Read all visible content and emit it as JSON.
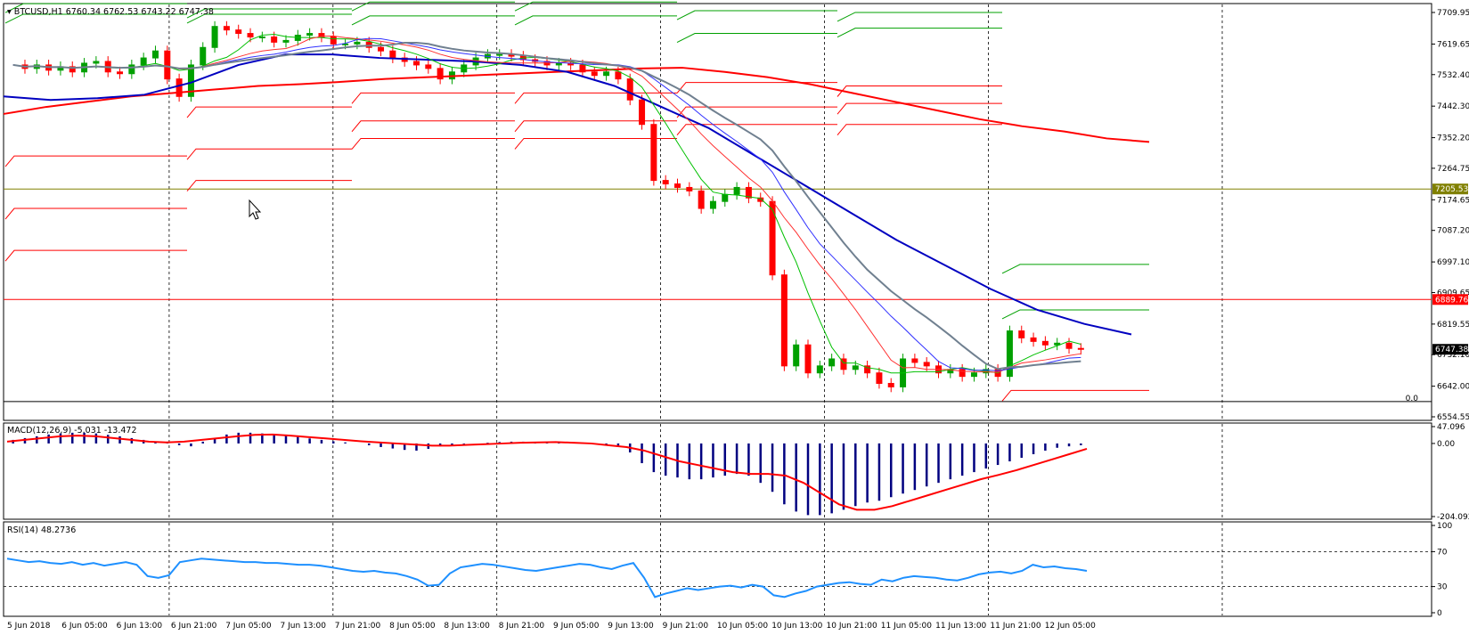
{
  "header": {
    "symbol_label": "BTCUSD,H1",
    "ohlc": "6760.34 6762.53 6743.22 6747.38"
  },
  "macd_header": "MACD(12,26,9) -5.031 -13.472",
  "rsi_header": "RSI(14) 48.2736",
  "price_levels": {
    "red_line_label": "6889.76",
    "olive_line_label": "7205.53",
    "current_label": "6747.38",
    "zero_label": "0.0",
    "red_line_value": 6889.76,
    "olive_line_value": 7205.53,
    "current_value": 6747.38,
    "black_line_value": 6598
  },
  "colors": {
    "bull": "#00a000",
    "bear": "#ff0000",
    "ma_blue": "#0000c0",
    "ma_red": "#ff0000",
    "macd_hist": "#000080",
    "rsi": "#1e90ff",
    "olive": "#808000"
  },
  "chart_data": [
    {
      "type": "candlestick",
      "title": "BTCUSD,H1",
      "ylim": [
        6554.55,
        7709.95
      ],
      "y_ticks": [
        "7709.95",
        "7619.65",
        "7532.40",
        "7442.30",
        "7352.20",
        "7264.75",
        "7174.65",
        "7087.20",
        "6997.10",
        "6909.65",
        "6819.55",
        "6732.10",
        "6642.00",
        "6554.55"
      ],
      "x_ticks": [
        "5 Jun 2018",
        "6 Jun 05:00",
        "6 Jun 13:00",
        "6 Jun 21:00",
        "7 Jun 05:00",
        "7 Jun 13:00",
        "7 Jun 21:00",
        "8 Jun 05:00",
        "8 Jun 13:00",
        "8 Jun 21:00",
        "9 Jun 05:00",
        "9 Jun 13:00",
        "9 Jun 21:00",
        "10 Jun 05:00",
        "10 Jun 13:00",
        "10 Jun 21:00",
        "11 Jun 05:00",
        "11 Jun 13:00",
        "11 Jun 21:00",
        "12 Jun 05:00"
      ],
      "close_path": [
        7560,
        7550,
        7560,
        7545,
        7555,
        7540,
        7565,
        7570,
        7540,
        7535,
        7560,
        7580,
        7600,
        7520,
        7470,
        7560,
        7610,
        7670,
        7660,
        7650,
        7640,
        7640,
        7625,
        7630,
        7645,
        7650,
        7640,
        7620,
        7620,
        7625,
        7610,
        7600,
        7580,
        7570,
        7560,
        7550,
        7520,
        7540,
        7560,
        7580,
        7590,
        7590,
        7585,
        7575,
        7570,
        7560,
        7565,
        7560,
        7540,
        7530,
        7540,
        7520,
        7460,
        7390,
        7230,
        7220,
        7210,
        7200,
        7150,
        7170,
        7190,
        7210,
        7180,
        7170,
        6960,
        6700,
        6760,
        6680,
        6700,
        6720,
        6690,
        6700,
        6680,
        6650,
        6640,
        6720,
        6710,
        6700,
        6680,
        6690,
        6670,
        6680,
        6690,
        6670,
        6800,
        6780,
        6770,
        6760,
        6765,
        6750,
        6747.38
      ],
      "ma_slow": [
        7420,
        7440,
        7455,
        7470,
        7480,
        7490,
        7500,
        7505,
        7512,
        7520,
        7525,
        7530,
        7535,
        7540,
        7545,
        7550,
        7552,
        7540,
        7525,
        7505,
        7480,
        7455,
        7430,
        7405,
        7385,
        7370,
        7350,
        7340
      ],
      "ma_mid": [
        7470,
        7460,
        7465,
        7475,
        7510,
        7560,
        7590,
        7590,
        7580,
        7575,
        7570,
        7560,
        7540,
        7500,
        7440,
        7380,
        7300,
        7220,
        7140,
        7060,
        6990,
        6920,
        6860,
        6820,
        6790
      ],
      "macd": {
        "ylim": [
          -204.092,
          47.096
        ],
        "y_ticks": [
          "47.096",
          "0.00",
          "-204.092"
        ],
        "hist": [
          10,
          15,
          20,
          25,
          28,
          30,
          30,
          28,
          24,
          20,
          15,
          10,
          5,
          2,
          -5,
          -8,
          5,
          15,
          25,
          30,
          30,
          28,
          25,
          22,
          18,
          14,
          10,
          6,
          3,
          0,
          -5,
          -10,
          -14,
          -18,
          -20,
          -15,
          -8,
          -4,
          -2,
          0,
          2,
          4,
          5,
          5,
          4,
          3,
          2,
          1,
          0,
          -2,
          -5,
          -10,
          -25,
          -55,
          -80,
          -90,
          -95,
          -100,
          -100,
          -95,
          -90,
          -85,
          -90,
          -110,
          -135,
          -170,
          -190,
          -200,
          -200,
          -195,
          -185,
          -175,
          -165,
          -160,
          -150,
          -140,
          -130,
          -120,
          -110,
          -100,
          -90,
          -80,
          -70,
          -60,
          -50,
          -40,
          -30,
          -20,
          -12,
          -8,
          -5
        ],
        "signal": [
          5,
          10,
          15,
          20,
          22,
          20,
          15,
          10,
          5,
          3,
          5,
          10,
          15,
          20,
          24,
          25,
          22,
          18,
          14,
          10,
          6,
          3,
          0,
          -3,
          -6,
          -6,
          -4,
          -2,
          0,
          2,
          3,
          4,
          2,
          0,
          -5,
          -10,
          -20,
          -35,
          -50,
          -60,
          -70,
          -80,
          -85,
          -85,
          -90,
          -110,
          -140,
          -170,
          -185,
          -185,
          -175,
          -160,
          -145,
          -130,
          -115,
          -100,
          -88,
          -75,
          -60,
          -45,
          -30,
          -15
        ]
      },
      "rsi": {
        "ylim": [
          0,
          100
        ],
        "y_ticks": [
          "100",
          "70",
          "30",
          "0"
        ],
        "values": [
          62,
          60,
          58,
          59,
          57,
          56,
          58,
          55,
          57,
          54,
          56,
          58,
          55,
          42,
          40,
          43,
          58,
          60,
          62,
          61,
          60,
          59,
          58,
          58,
          57,
          57,
          56,
          55,
          55,
          54,
          52,
          50,
          48,
          47,
          48,
          46,
          45,
          42,
          38,
          31,
          32,
          45,
          52,
          54,
          56,
          55,
          53,
          51,
          49,
          48,
          50,
          52,
          54,
          56,
          55,
          52,
          50,
          54,
          57,
          40,
          18,
          22,
          25,
          28,
          26,
          28,
          30,
          31,
          29,
          32,
          30,
          20,
          18,
          22,
          25,
          30,
          32,
          34,
          35,
          33,
          32,
          38,
          36,
          40,
          42,
          41,
          40,
          38,
          37,
          40,
          44,
          46,
          47,
          45,
          48,
          55,
          52,
          53,
          51,
          50,
          48
        ]
      }
    }
  ]
}
